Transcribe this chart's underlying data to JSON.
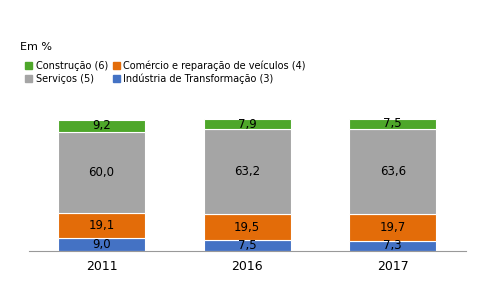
{
  "categories": [
    "2011",
    "2016",
    "2017"
  ],
  "series": {
    "Indústria de Transformação (3)": [
      9.0,
      7.5,
      7.3
    ],
    "Comércio e reparação de veículos (4)": [
      19.1,
      19.5,
      19.7
    ],
    "Serviços (5)": [
      60.0,
      63.2,
      63.6
    ],
    "Construção (6)": [
      9.2,
      7.9,
      7.5
    ]
  },
  "colors": {
    "Indústria de Transformação (3)": "#4472C4",
    "Comércio e reparação de veículos (4)": "#E36C09",
    "Serviços (5)": "#A5A5A5",
    "Construção (6)": "#4EA72A"
  },
  "stack_order": [
    "Indústria de Transformação (3)",
    "Comércio e reparação de veículos (4)",
    "Serviços (5)",
    "Construção (6)"
  ],
  "legend_order": [
    "Construção (6)",
    "Serviços (5)",
    "Comércio e reparação de veículos (4)",
    "Indústria de Transformação (3)"
  ],
  "ylabel": "Em %",
  "bar_width": 0.6,
  "background_color": "#FFFFFF",
  "label_fontsize": 8.5,
  "legend_fontsize": 7.0,
  "ylabel_fontsize": 8,
  "xtick_fontsize": 9,
  "ylim": [
    0,
    105
  ]
}
